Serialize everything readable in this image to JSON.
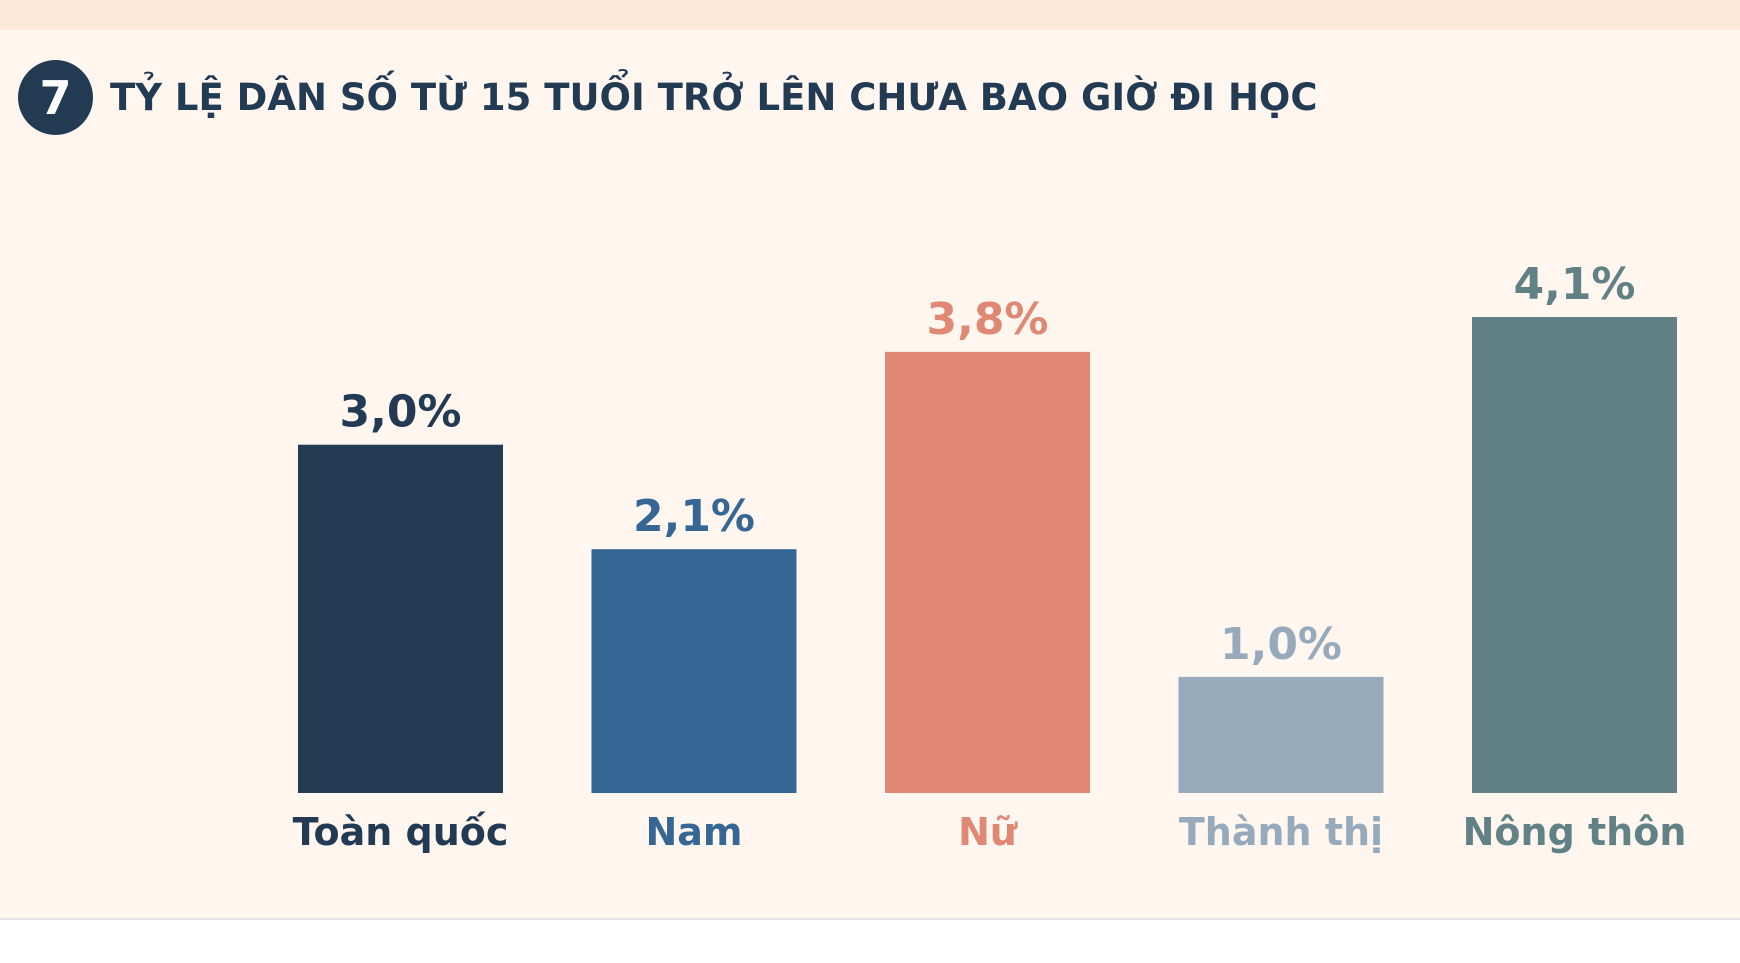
{
  "header": {
    "number": "7",
    "title": "TỶ LỆ DÂN SỐ TỪ 15 TUỔI TRỞ LÊN CHƯA BAO GIỜ ĐI HỌC"
  },
  "chart_data": {
    "type": "bar",
    "title": "TỶ LỆ DÂN SỐ TỪ 15 TUỔI TRỞ LÊN CHƯA BAO GIỜ ĐI HỌC",
    "categories": [
      "Toàn quốc",
      "Nam",
      "Nữ",
      "Thành thị",
      "Nông thôn"
    ],
    "values": [
      3.0,
      2.1,
      3.8,
      1.0,
      4.1
    ],
    "value_labels": [
      "3,0%",
      "2,1%",
      "3,8%",
      "1,0%",
      "4,1%"
    ],
    "colors": [
      "#233a53",
      "#366794",
      "#e08873",
      "#97aabb",
      "#628184"
    ],
    "ylim": [
      0,
      4.1
    ],
    "grid": false,
    "legend": "none"
  }
}
